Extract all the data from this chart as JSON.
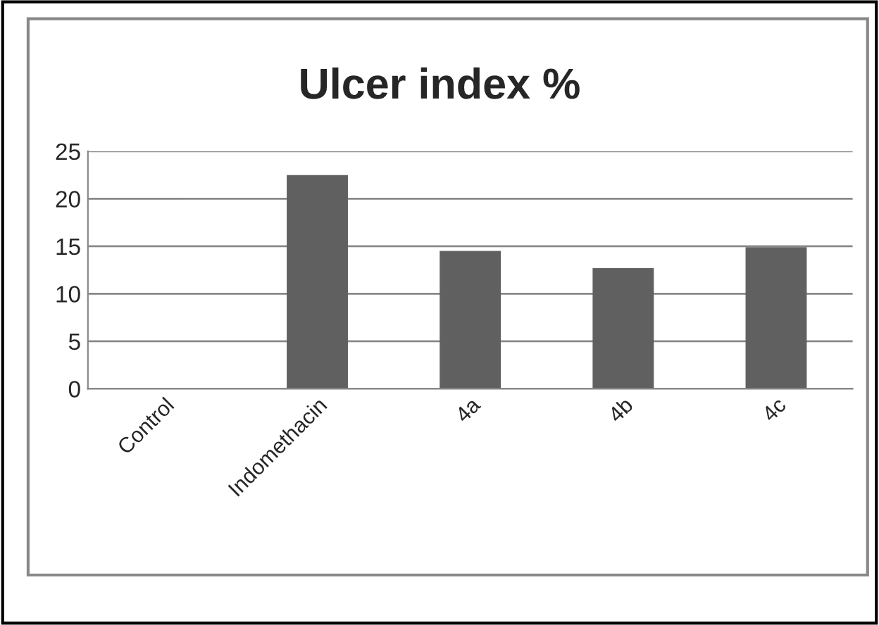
{
  "chart_data": {
    "type": "bar",
    "title": "Ulcer index %",
    "categories": [
      "Control",
      "Indomethacin",
      "4a",
      "4b",
      "4c"
    ],
    "values": [
      0,
      22.5,
      14.5,
      12.7,
      14.9
    ],
    "color": "#606060",
    "ylim": [
      0,
      25
    ],
    "yticks": [
      0,
      5,
      10,
      15,
      20,
      25
    ],
    "grid": "y",
    "legend": false
  }
}
